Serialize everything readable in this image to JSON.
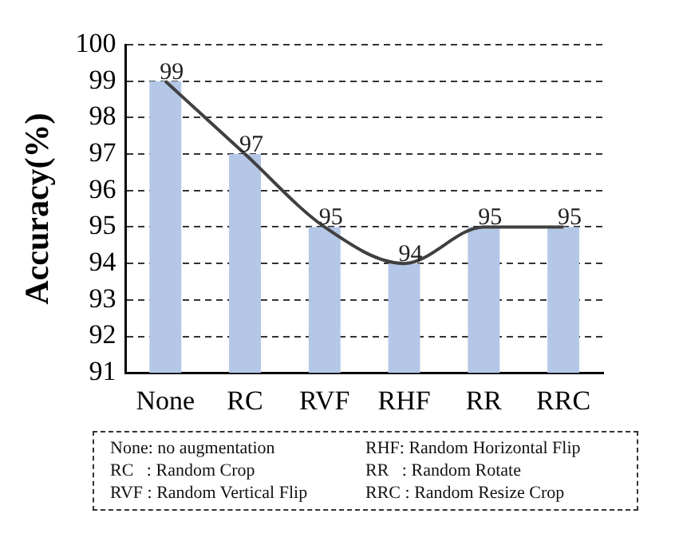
{
  "chart_data": {
    "type": "bar",
    "ylabel": "Accuracy(%)",
    "categories": [
      "None",
      "RC",
      "RVF",
      "RHF",
      "RR",
      "RRC"
    ],
    "series": [
      {
        "color": "#b4c7e7",
        "values": [
          99,
          97,
          95,
          94,
          95,
          95
        ],
        "value_labels": [
          "99",
          "97",
          "95",
          "94",
          "95",
          "95"
        ]
      },
      {
        "type": "line",
        "color": "#404040",
        "values": [
          99,
          97,
          95,
          94,
          95,
          95
        ],
        "marker": "none",
        "line_style": "solid"
      }
    ],
    "ylim": [
      91,
      100
    ],
    "yticks": [
      91,
      92,
      93,
      94,
      95,
      96,
      97,
      98,
      99,
      100
    ],
    "grid": "y",
    "legend": false,
    "annotations": [
      "None: no augmentation",
      "RHF: Random Horizontal Flip",
      "RC   : Random Crop",
      "RR   : Random Rotate",
      "RVF : Random Vertical Flip",
      "RRC : Random Resize Crop"
    ]
  }
}
